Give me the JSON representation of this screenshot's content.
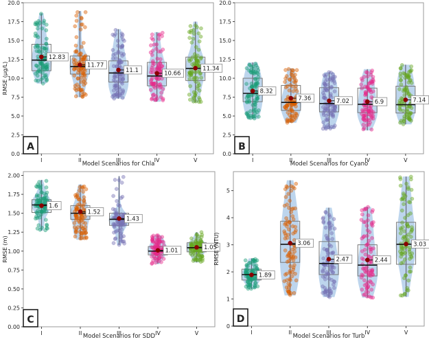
{
  "chart_data": [
    {
      "type": "violin-box-strip",
      "panel_label": "A",
      "xlabel": "Model Scenarios for Chla",
      "ylabel": "RMSE (µg/L)",
      "ylim": [
        0,
        20
      ],
      "yticks": [
        "0.0",
        "2.5",
        "5.0",
        "7.5",
        "10.0",
        "12.5",
        "15.0",
        "17.5",
        "20.0"
      ],
      "categories": [
        "I",
        "II",
        "III",
        "IV",
        "V"
      ],
      "series": [
        {
          "category": "I",
          "mean": 12.83,
          "median": 12.4,
          "q1": 11.0,
          "q3": 14.5,
          "min": 9.3,
          "max": 18.6
        },
        {
          "category": "II",
          "mean": 11.77,
          "median": 11.55,
          "q1": 10.55,
          "q3": 12.95,
          "min": 7.5,
          "max": 18.9
        },
        {
          "category": "III",
          "mean": 11.1,
          "median": 10.7,
          "q1": 9.5,
          "q3": 12.3,
          "min": 7.3,
          "max": 16.5
        },
        {
          "category": "IV",
          "mean": 10.66,
          "median": 10.3,
          "q1": 9.0,
          "q3": 12.1,
          "min": 6.9,
          "max": 16.1
        },
        {
          "category": "V",
          "mean": 11.34,
          "median": 11.3,
          "q1": 9.7,
          "q3": 12.8,
          "min": 6.8,
          "max": 17.5
        }
      ]
    },
    {
      "type": "violin-box-strip",
      "panel_label": "B",
      "xlabel": "Model Scenarios for Cyano",
      "ylabel": "",
      "ylim": [
        0,
        20
      ],
      "yticks": [
        "0.0",
        "2.5",
        "5.0",
        "7.5",
        "10.0",
        "12.5",
        "15.0",
        "17.5",
        "20.0"
      ],
      "categories": [
        "I",
        "II",
        "III",
        "IV",
        "V"
      ],
      "series": [
        {
          "category": "I",
          "mean": 8.32,
          "median": 8.0,
          "q1": 6.9,
          "q3": 10.0,
          "min": 4.6,
          "max": 12.1
        },
        {
          "category": "II",
          "mean": 7.36,
          "median": 6.8,
          "q1": 5.75,
          "q3": 9.05,
          "min": 4.1,
          "max": 11.3
        },
        {
          "category": "III",
          "mean": 7.02,
          "median": 6.65,
          "q1": 5.55,
          "q3": 8.75,
          "min": 3.3,
          "max": 10.8
        },
        {
          "category": "IV",
          "mean": 6.9,
          "median": 6.55,
          "q1": 5.45,
          "q3": 8.7,
          "min": 3.1,
          "max": 11.2
        },
        {
          "category": "V",
          "mean": 7.14,
          "median": 6.5,
          "q1": 5.4,
          "q3": 8.95,
          "min": 3.9,
          "max": 11.8
        }
      ]
    },
    {
      "type": "violin-box-strip",
      "panel_label": "C",
      "xlabel": "Model Scenarios for SDD",
      "ylabel": "RMSE (m)",
      "ylim": [
        0,
        2.05
      ],
      "yticks": [
        "0.00",
        "0.25",
        "0.50",
        "0.75",
        "1.00",
        "1.25",
        "1.50",
        "1.75",
        "2.00"
      ],
      "categories": [
        "I",
        "II",
        "III",
        "IV",
        "V"
      ],
      "series": [
        {
          "category": "I",
          "mean": 1.6,
          "median": 1.61,
          "q1": 1.51,
          "q3": 1.68,
          "min": 1.27,
          "max": 1.94
        },
        {
          "category": "II",
          "mean": 1.52,
          "median": 1.5,
          "q1": 1.42,
          "q3": 1.6,
          "min": 1.15,
          "max": 1.88
        },
        {
          "category": "III",
          "mean": 1.43,
          "median": 1.42,
          "q1": 1.34,
          "q3": 1.5,
          "min": 1.08,
          "max": 1.99
        },
        {
          "category": "IV",
          "mean": 1.01,
          "median": 1.0,
          "q1": 0.95,
          "q3": 1.06,
          "min": 0.83,
          "max": 1.21
        },
        {
          "category": "V",
          "mean": 1.05,
          "median": 1.045,
          "q1": 0.99,
          "q3": 1.11,
          "min": 0.85,
          "max": 1.25
        }
      ]
    },
    {
      "type": "violin-box-strip",
      "panel_label": "D",
      "xlabel": "Model Scenarios for Turb",
      "ylabel": "RMSE (NTU)",
      "ylim": [
        0,
        5.7
      ],
      "yticks": [
        "0",
        "1",
        "2",
        "3",
        "4",
        "5"
      ],
      "categories": [
        "I",
        "II",
        "III",
        "IV",
        "V"
      ],
      "series": [
        {
          "category": "I",
          "mean": 1.89,
          "median": 1.9,
          "q1": 1.7,
          "q3": 2.1,
          "min": 1.37,
          "max": 2.5
        },
        {
          "category": "II",
          "mean": 3.06,
          "median": 3.02,
          "q1": 2.35,
          "q3": 3.87,
          "min": 1.13,
          "max": 5.38
        },
        {
          "category": "III",
          "mean": 2.47,
          "median": 2.31,
          "q1": 1.9,
          "q3": 3.12,
          "min": 1.07,
          "max": 4.37
        },
        {
          "category": "IV",
          "mean": 2.44,
          "median": 2.25,
          "q1": 1.85,
          "q3": 3.0,
          "min": 1.05,
          "max": 4.4
        },
        {
          "category": "V",
          "mean": 3.03,
          "median": 3.02,
          "q1": 2.28,
          "q3": 3.83,
          "min": 1.08,
          "max": 5.52
        }
      ]
    }
  ],
  "colors": {
    "scenarios": [
      "#1b9e77",
      "#d95f02",
      "#7570b3",
      "#e7298a",
      "#66a61e"
    ],
    "violin": "#a7c7e7",
    "mean_marker": "#8b0000",
    "box": "#777777"
  }
}
